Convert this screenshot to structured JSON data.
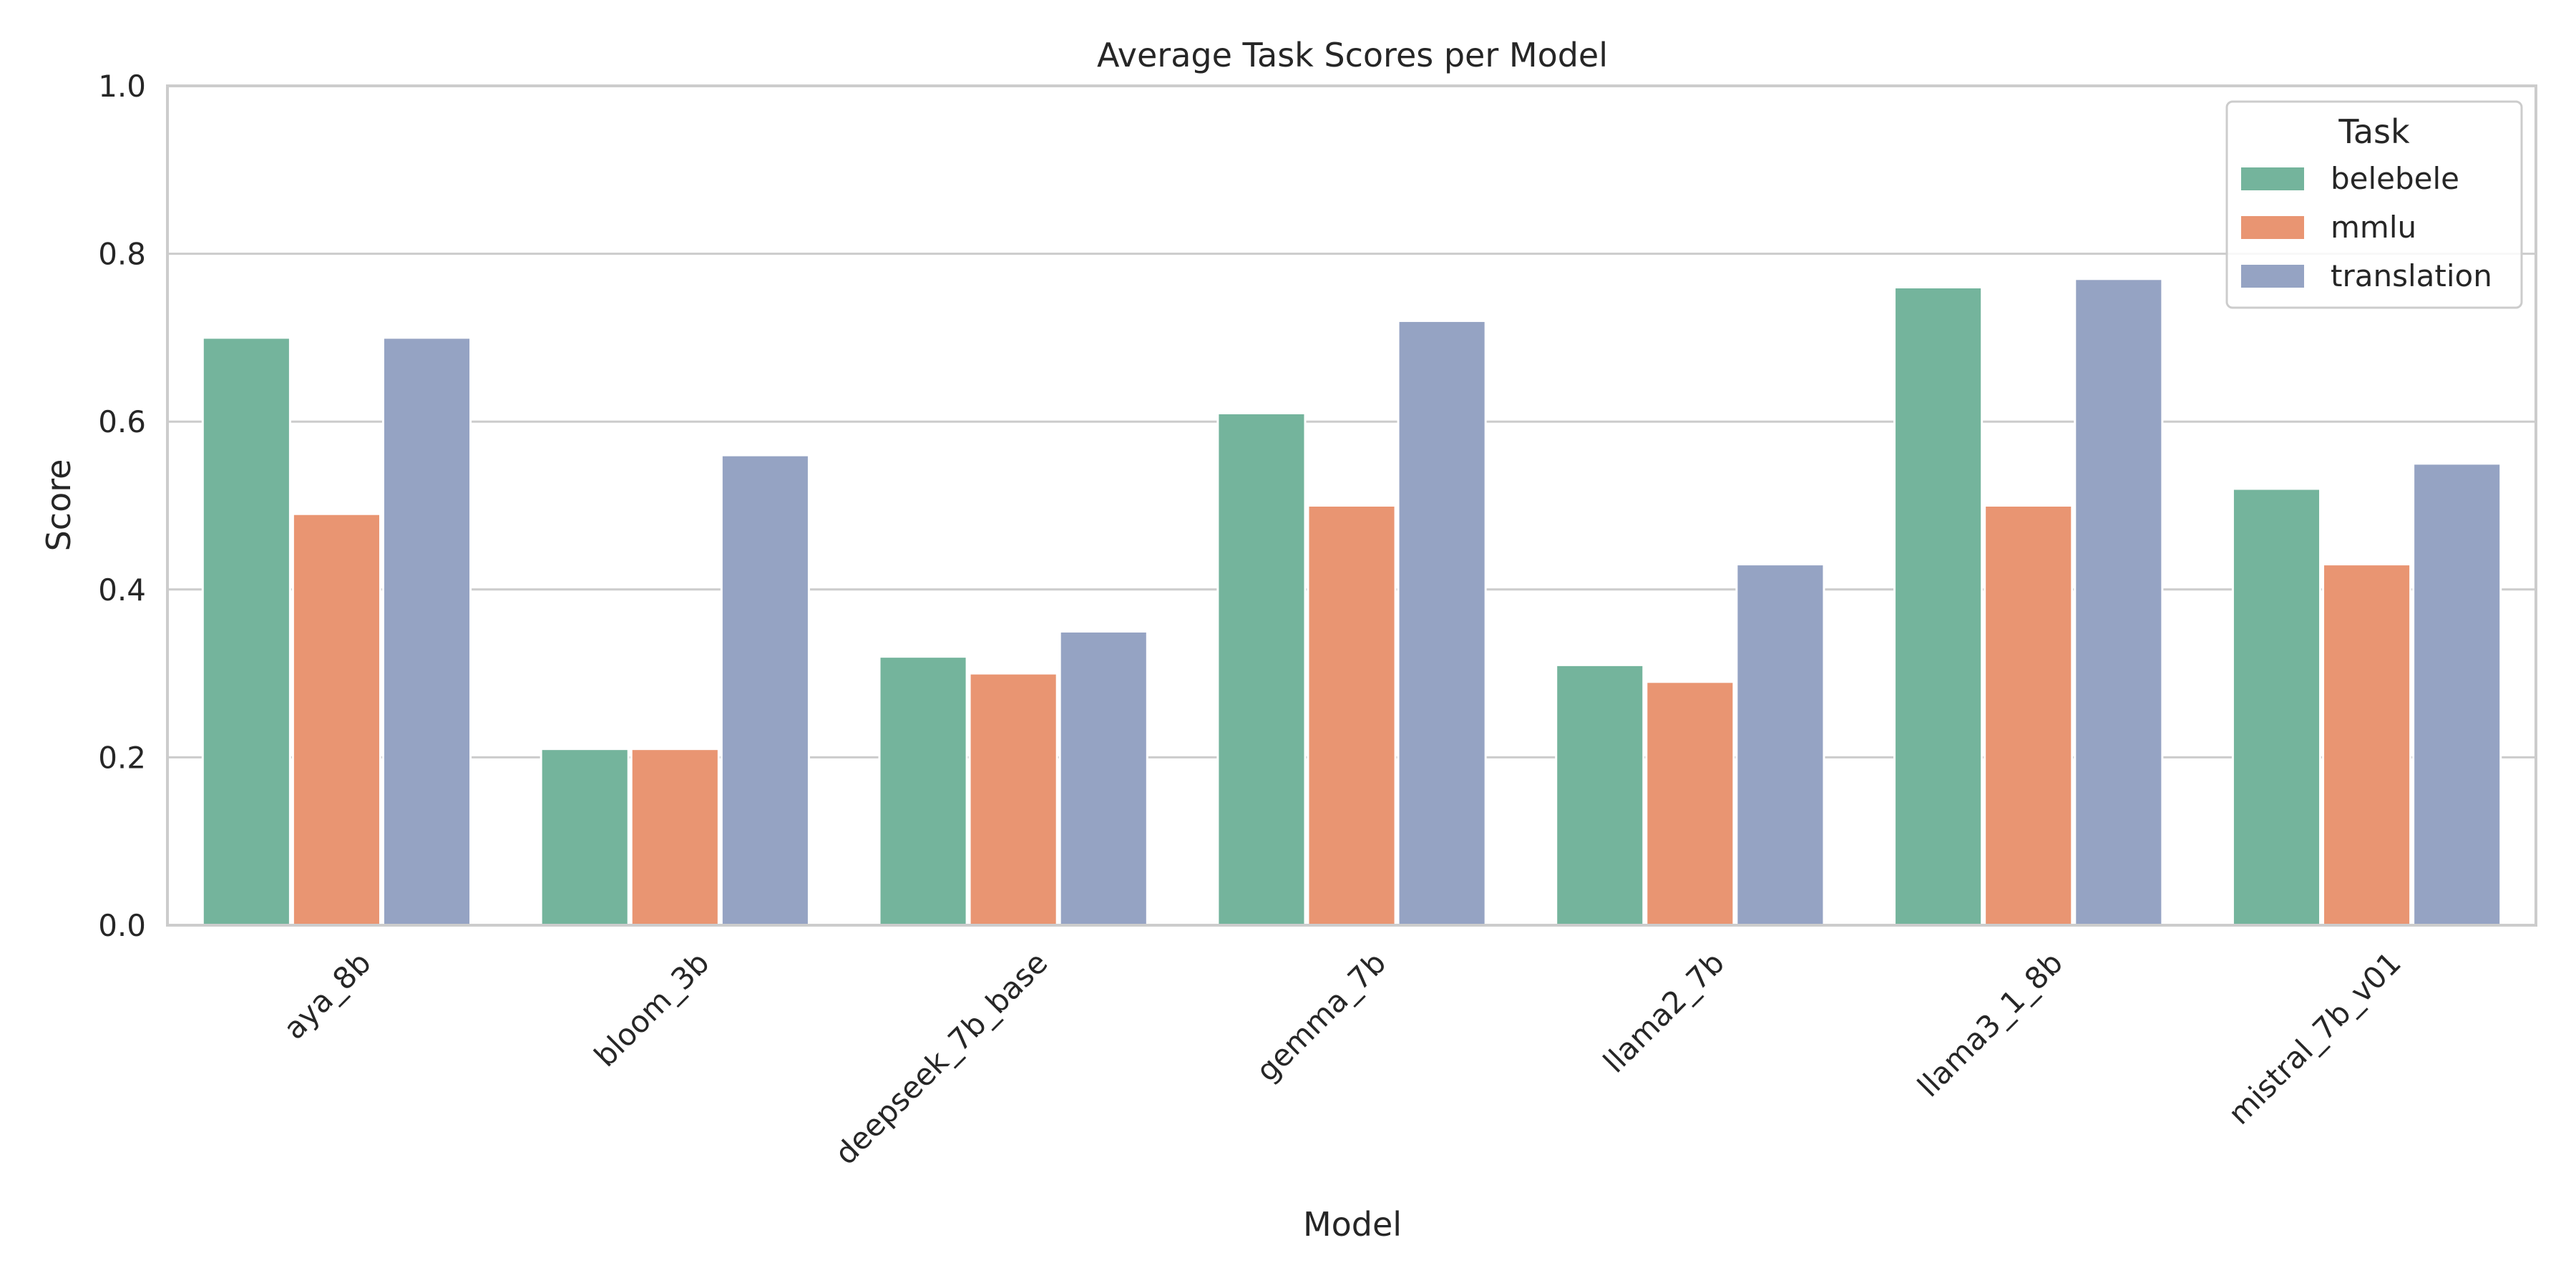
{
  "chart_data": {
    "type": "bar",
    "title": "Average Task Scores per Model",
    "xlabel": "Model",
    "ylabel": "Score",
    "ylim": [
      0,
      1
    ],
    "yticks": [
      "0.0",
      "0.2",
      "0.4",
      "0.6",
      "0.8",
      "1.0"
    ],
    "grid": true,
    "legend": {
      "title": "Task",
      "placement": "top-right"
    },
    "categories": [
      "aya_8b",
      "bloom_3b",
      "deepseek_7b_base",
      "gemma_7b",
      "llama2_7b",
      "llama3_1_8b",
      "mistral_7b_v01"
    ],
    "series": [
      {
        "name": "belebele",
        "color": "#74b49c",
        "values": [
          0.7,
          0.21,
          0.32,
          0.61,
          0.31,
          0.76,
          0.52
        ]
      },
      {
        "name": "mmlu",
        "color": "#e99572",
        "values": [
          0.49,
          0.21,
          0.3,
          0.5,
          0.29,
          0.5,
          0.43
        ]
      },
      {
        "name": "translation",
        "color": "#95a3c3",
        "values": [
          0.7,
          0.56,
          0.35,
          0.72,
          0.43,
          0.77,
          0.55
        ]
      }
    ]
  }
}
